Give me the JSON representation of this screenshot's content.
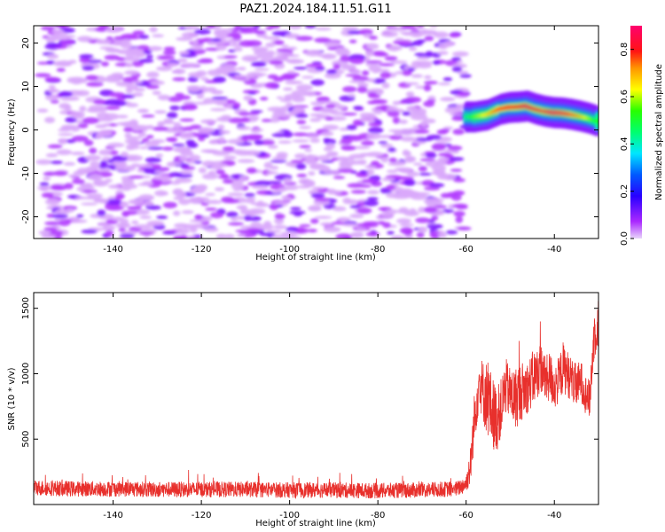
{
  "title": "PAZ1.2024.184.11.51.G11",
  "chart_data": [
    {
      "type": "heatmap",
      "xlabel": "Height of straight line (km)",
      "ylabel": "Frequency (Hz)",
      "xlim": [
        -158,
        -30
      ],
      "ylim": [
        -25,
        24
      ],
      "xticks": [
        -140,
        -120,
        -100,
        -80,
        -60,
        -40
      ],
      "yticks": [
        20,
        10,
        0,
        -10,
        -20
      ],
      "colorbar": {
        "label": "Normalized spectral amplitude",
        "range": [
          0,
          0.9
        ],
        "ticks": [
          "0.0",
          "0.2",
          "0.4",
          "0.6",
          "0.8"
        ],
        "tick_values": [
          0,
          0.2,
          0.4,
          0.6,
          0.8
        ],
        "colormap": "gist_rainbow_r"
      },
      "noise_region": {
        "x": [
          -156,
          -60
        ],
        "y": [
          -25,
          24
        ],
        "level": 0.05
      },
      "signal_ridge": {
        "x": [
          -60,
          -58,
          -55,
          -52,
          -50,
          -48,
          -46,
          -44,
          -42,
          -40,
          -38,
          -36,
          -34,
          -32,
          -30
        ],
        "frequency": [
          3.0,
          3.0,
          3.5,
          4.8,
          5.2,
          5.3,
          5.5,
          4.8,
          4.3,
          4.0,
          3.9,
          3.6,
          3.2,
          2.7,
          2.0
        ],
        "amplitude": [
          0.45,
          0.55,
          0.65,
          0.78,
          0.82,
          0.8,
          0.85,
          0.8,
          0.78,
          0.86,
          0.84,
          0.78,
          0.7,
          0.6,
          0.5
        ]
      }
    },
    {
      "type": "line",
      "xlabel": "Height of straight line (km)",
      "ylabel": "SNR (10 * v/v)",
      "xlim": [
        -158,
        -30
      ],
      "ylim": [
        0,
        1620
      ],
      "xticks": [
        -140,
        -120,
        -100,
        -80,
        -60,
        -40
      ],
      "yticks": [
        500,
        1000,
        1500
      ],
      "series": [
        {
          "color": "#e8302c",
          "x": [
            -158,
            -150,
            -140,
            -130,
            -120,
            -110,
            -100,
            -90,
            -80,
            -70,
            -62,
            -60,
            -59,
            -58,
            -57,
            -56,
            -55,
            -54,
            -53,
            -52,
            -51,
            -50,
            -49,
            -48,
            -47,
            -46,
            -45,
            -44,
            -43,
            -42,
            -41,
            -40,
            -39,
            -38,
            -37,
            -36,
            -35,
            -34,
            -33,
            -32,
            -31,
            -30
          ],
          "y": [
            130,
            120,
            120,
            115,
            115,
            115,
            110,
            110,
            105,
            110,
            120,
            160,
            300,
            700,
            950,
            850,
            800,
            700,
            650,
            750,
            900,
            850,
            800,
            850,
            880,
            900,
            950,
            1000,
            1050,
            950,
            980,
            900,
            950,
            1050,
            1000,
            950,
            900,
            950,
            850,
            800,
            1300,
            1400
          ],
          "noise": [
            60,
            60,
            60,
            60,
            60,
            60,
            60,
            60,
            60,
            60,
            60,
            70,
            150,
            220,
            200,
            250,
            300,
            280,
            250,
            220,
            220,
            200,
            250,
            230,
            220,
            200,
            220,
            200,
            200,
            180,
            200,
            180,
            180,
            200,
            180,
            170,
            170,
            160,
            150,
            150,
            200,
            200
          ]
        }
      ]
    }
  ]
}
